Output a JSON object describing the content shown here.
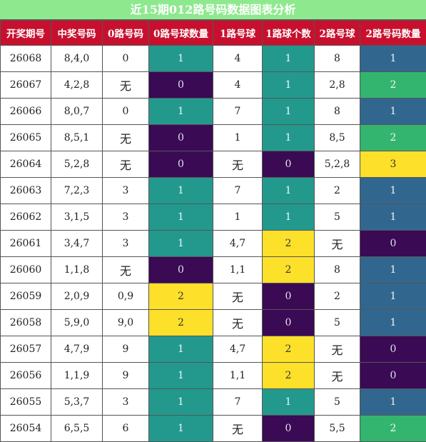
{
  "title": "近15期012路号码数据图表分析",
  "headers": [
    "开奖期号",
    "中奖号码",
    "0路号码",
    "0路号球数量",
    "1路号球",
    "1路球个数",
    "2路号球",
    "2路号码数量"
  ],
  "colors": {
    "title_bg": "#8ee98e",
    "header_bg": "#c8102e",
    "count_0": "#3a0a55",
    "count_1": "#23998e",
    "count_2": "#fde02a",
    "count2col_1": "#31678f",
    "count2col_2": "#33b56f",
    "count2col_3": "#fde02a"
  },
  "rows": [
    {
      "period": "26068",
      "numbers": "8,4,0",
      "r0": "0",
      "c0": "1",
      "r1": "4",
      "c1": "1",
      "r2": "8",
      "c2": "1"
    },
    {
      "period": "26067",
      "numbers": "4,2,8",
      "r0": "无",
      "c0": "0",
      "r1": "4",
      "c1": "1",
      "r2": "2,8",
      "c2": "2"
    },
    {
      "period": "26066",
      "numbers": "8,0,7",
      "r0": "0",
      "c0": "1",
      "r1": "7",
      "c1": "1",
      "r2": "8",
      "c2": "1"
    },
    {
      "period": "26065",
      "numbers": "8,5,1",
      "r0": "无",
      "c0": "0",
      "r1": "1",
      "c1": "1",
      "r2": "8,5",
      "c2": "2"
    },
    {
      "period": "26064",
      "numbers": "5,2,8",
      "r0": "无",
      "c0": "0",
      "r1": "无",
      "c1": "0",
      "r2": "5,2,8",
      "c2": "3"
    },
    {
      "period": "26063",
      "numbers": "7,2,3",
      "r0": "3",
      "c0": "1",
      "r1": "7",
      "c1": "1",
      "r2": "2",
      "c2": "1"
    },
    {
      "period": "26062",
      "numbers": "3,1,5",
      "r0": "3",
      "c0": "1",
      "r1": "1",
      "c1": "1",
      "r2": "5",
      "c2": "1"
    },
    {
      "period": "26061",
      "numbers": "3,4,7",
      "r0": "3",
      "c0": "1",
      "r1": "4,7",
      "c1": "2",
      "r2": "无",
      "c2": "0"
    },
    {
      "period": "26060",
      "numbers": "1,1,8",
      "r0": "无",
      "c0": "0",
      "r1": "1,1",
      "c1": "2",
      "r2": "8",
      "c2": "1"
    },
    {
      "period": "26059",
      "numbers": "2,0,9",
      "r0": "0,9",
      "c0": "2",
      "r1": "无",
      "c1": "0",
      "r2": "2",
      "c2": "1"
    },
    {
      "period": "26058",
      "numbers": "5,9,0",
      "r0": "9,0",
      "c0": "2",
      "r1": "无",
      "c1": "0",
      "r2": "5",
      "c2": "1"
    },
    {
      "period": "26057",
      "numbers": "4,7,9",
      "r0": "9",
      "c0": "1",
      "r1": "4,7",
      "c1": "2",
      "r2": "无",
      "c2": "0"
    },
    {
      "period": "26056",
      "numbers": "1,1,9",
      "r0": "9",
      "c0": "1",
      "r1": "1,1",
      "c1": "2",
      "r2": "无",
      "c2": "0"
    },
    {
      "period": "26055",
      "numbers": "5,3,7",
      "r0": "3",
      "c0": "1",
      "r1": "7",
      "c1": "1",
      "r2": "5",
      "c2": "1"
    },
    {
      "period": "26054",
      "numbers": "6,5,5",
      "r0": "6",
      "c0": "1",
      "r1": "无",
      "c1": "0",
      "r2": "5,5",
      "c2": "2"
    }
  ]
}
